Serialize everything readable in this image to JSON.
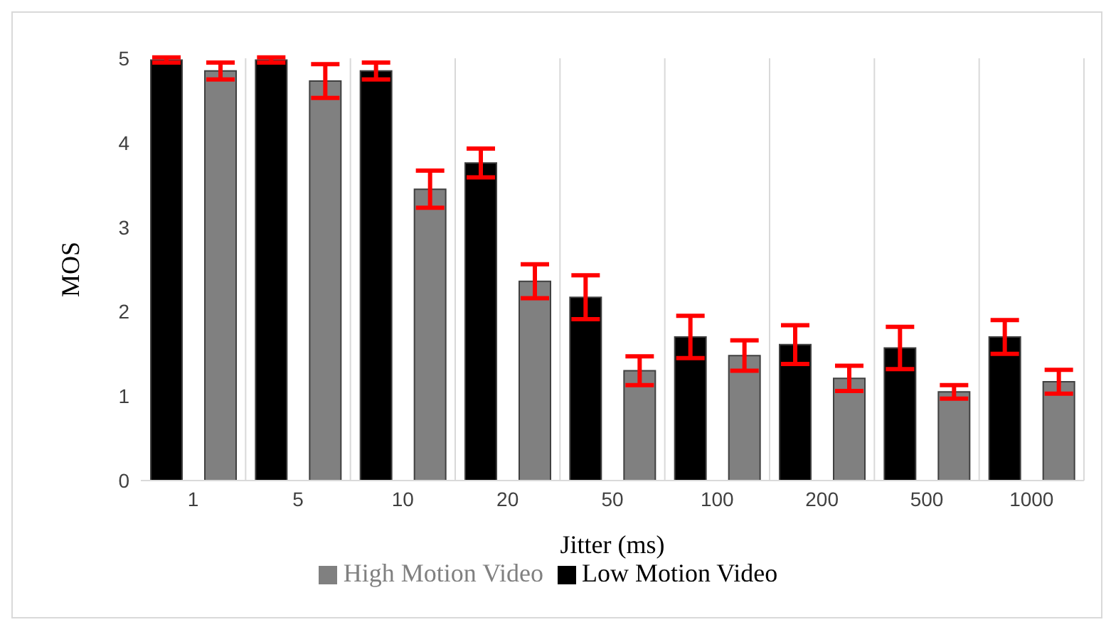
{
  "chart_data": {
    "type": "bar",
    "xlabel": "Jitter  (ms)",
    "ylabel": "MOS",
    "categories": [
      "1",
      "5",
      "10",
      "20",
      "50",
      "100",
      "200",
      "500",
      "1000"
    ],
    "series": [
      {
        "name": "Low Motion Video",
        "color": "#000000",
        "values": [
          4.98,
          4.98,
          4.85,
          3.76,
          2.17,
          1.7,
          1.61,
          1.57,
          1.7
        ],
        "errors": [
          0.03,
          0.03,
          0.1,
          0.17,
          0.26,
          0.25,
          0.23,
          0.25,
          0.2
        ]
      },
      {
        "name": "High Motion Video",
        "color": "#808080",
        "values": [
          4.85,
          4.73,
          3.45,
          2.36,
          1.3,
          1.48,
          1.21,
          1.05,
          1.17
        ],
        "errors": [
          0.1,
          0.2,
          0.22,
          0.2,
          0.17,
          0.18,
          0.15,
          0.08,
          0.14
        ]
      }
    ],
    "ylim": [
      0,
      5
    ],
    "yticks": [
      0,
      1,
      2,
      3,
      4,
      5
    ],
    "grid": "x",
    "legend": "bottom"
  }
}
